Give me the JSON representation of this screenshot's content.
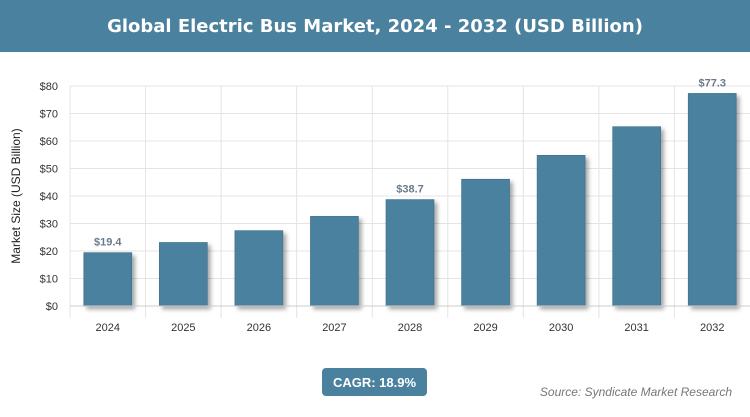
{
  "chart_data": {
    "type": "bar",
    "title": "Global Electric Bus Market, 2024 - 2032 (USD Billion)",
    "ylabel": "Market Size (USD Billion)",
    "xlabel": "",
    "categories": [
      "2024",
      "2025",
      "2026",
      "2027",
      "2028",
      "2029",
      "2030",
      "2031",
      "2032"
    ],
    "values": [
      19.4,
      23.1,
      27.4,
      32.6,
      38.7,
      46.1,
      54.8,
      65.2,
      77.3
    ],
    "data_labels": {
      "0": "$19.4",
      "4": "$38.7",
      "8": "$77.3"
    },
    "ylim": [
      0,
      80
    ],
    "yticks": [
      "$0",
      "$10",
      "$20",
      "$30",
      "$40",
      "$50",
      "$60",
      "$70",
      "$80"
    ],
    "grid": true,
    "bar_color": "#4a819e"
  },
  "cagr": "CAGR: 18.9%",
  "source": "Source: Syndicate Market Research"
}
